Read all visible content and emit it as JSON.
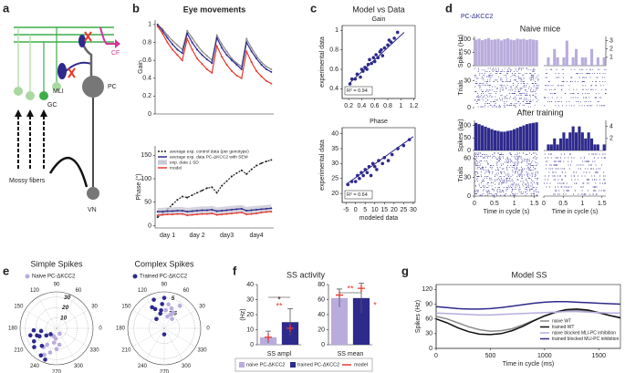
{
  "panel_labels": [
    "a",
    "b",
    "c",
    "d",
    "e",
    "f",
    "g"
  ],
  "diagram": {
    "labels": [
      "CF",
      "PC",
      "MLI",
      "GC",
      "Mossy fibers",
      "VN"
    ]
  },
  "chart_data": [
    {
      "type": "line",
      "title": "Eye movements",
      "ylabel": "Gain",
      "categories": [
        null,
        null,
        null,
        null,
        null,
        null,
        null,
        null,
        null,
        null,
        null,
        null,
        null,
        null,
        null,
        null,
        null,
        null,
        null,
        null,
        null,
        null,
        null,
        null
      ],
      "ylim": [
        0,
        1.05
      ],
      "yticks": [
        0,
        0.2,
        0.4,
        0.6,
        0.8,
        1
      ],
      "series": [
        {
          "color": "#8a8a8a",
          "values": [
            1,
            0.95,
            0.88,
            0.82,
            0.77,
            0.72,
            0.93,
            0.85,
            0.77,
            0.7,
            0.65,
            0.6,
            0.88,
            0.78,
            0.7,
            0.62,
            0.57,
            0.53,
            0.84,
            0.74,
            0.65,
            0.58,
            0.53,
            0.5
          ]
        },
        {
          "color": "#2e2a8c",
          "values": [
            1,
            0.93,
            0.85,
            0.78,
            0.72,
            0.68,
            0.9,
            0.8,
            0.72,
            0.66,
            0.61,
            0.57,
            0.85,
            0.74,
            0.66,
            0.6,
            0.55,
            0.5,
            0.8,
            0.7,
            0.62,
            0.55,
            0.5,
            0.47
          ]
        },
        {
          "color": "#e53a2f",
          "values": [
            0.98,
            0.9,
            0.8,
            0.72,
            0.66,
            0.6,
            0.84,
            0.72,
            0.62,
            0.56,
            0.5,
            0.46,
            0.76,
            0.64,
            0.55,
            0.48,
            0.43,
            0.4,
            0.7,
            0.58,
            0.48,
            0.42,
            0.37,
            0.34
          ]
        }
      ]
    },
    {
      "type": "line",
      "ylabel": "Phase (°)",
      "categories": [
        null,
        null,
        "day 1",
        null,
        null,
        null,
        null,
        null,
        "day 2",
        null,
        null,
        null,
        null,
        null,
        "day3",
        null,
        null,
        null,
        null,
        null,
        "day4",
        null,
        null,
        null
      ],
      "ylim": [
        -5,
        170
      ],
      "yticks": [
        0,
        50,
        100,
        150
      ],
      "series": [
        {
          "name": "average exp. control data (per genotype)",
          "color": "#222222",
          "dash": true,
          "values": [
            18,
            25,
            35,
            45,
            55,
            62,
            60,
            65,
            70,
            75,
            80,
            82,
            70,
            85,
            95,
            105,
            112,
            118,
            110,
            120,
            128,
            133,
            137,
            140
          ]
        },
        {
          "name": "average exp. data PC-ΔKCC2 with SEM",
          "color": "#2e2a8c",
          "band_name": "exp. data 1 SD",
          "band_color": "#c9c9d6",
          "values": [
            30,
            30,
            31,
            31,
            32,
            32,
            30,
            31,
            32,
            33,
            33,
            34,
            31,
            32,
            33,
            34,
            35,
            36,
            32,
            33,
            34,
            35,
            36,
            37
          ],
          "sd": [
            8,
            8,
            8,
            8,
            8,
            8,
            8,
            8,
            8,
            8,
            8,
            8,
            8,
            8,
            8,
            8,
            8,
            8,
            8,
            8,
            8,
            8,
            8,
            8
          ]
        },
        {
          "name": "model",
          "color": "#e53a2f",
          "values": [
            22,
            23,
            24,
            24,
            25,
            25,
            22,
            23,
            24,
            25,
            25,
            26,
            23,
            24,
            25,
            26,
            27,
            28,
            24,
            25,
            26,
            28,
            29,
            30
          ]
        }
      ]
    },
    {
      "type": "scatter",
      "title": "Model vs Data",
      "subtitle": "Gain",
      "ylabel": "experimental data",
      "annotation": "R² = 0.94",
      "color": "#2e2a8c",
      "xlim": [
        0.1,
        1.22
      ],
      "xticks": [
        0.2,
        0.4,
        0.6,
        0.8,
        1,
        1.2
      ],
      "ylim": [
        0.3,
        1.05
      ],
      "yticks": [
        0.4,
        0.6,
        0.8,
        1
      ],
      "x": [
        0.22,
        0.25,
        0.3,
        0.33,
        0.38,
        0.4,
        0.42,
        0.45,
        0.48,
        0.5,
        0.52,
        0.55,
        0.58,
        0.6,
        0.62,
        0.65,
        0.68,
        0.7,
        0.72,
        0.75,
        0.8,
        0.82,
        0.85,
        0.9,
        0.95
      ],
      "y": [
        0.45,
        0.5,
        0.5,
        0.55,
        0.52,
        0.6,
        0.58,
        0.62,
        0.6,
        0.65,
        0.7,
        0.66,
        0.72,
        0.68,
        0.75,
        0.72,
        0.78,
        0.8,
        0.74,
        0.82,
        0.85,
        0.9,
        0.88,
        0.92,
        0.98
      ],
      "fit": {
        "x": [
          0.2,
          1.05
        ],
        "y": [
          0.45,
          0.98
        ]
      }
    },
    {
      "type": "scatter",
      "subtitle": "Phase",
      "xlabel": "modeled data",
      "ylabel": "experimental data",
      "annotation": "R² = 0.64",
      "color": "#2e2a8c",
      "xlim": [
        -7,
        31
      ],
      "xticks": [
        -5,
        0,
        5,
        10,
        15,
        20,
        25,
        30
      ],
      "ylim": [
        17,
        42
      ],
      "yticks": [
        20,
        25,
        30,
        35,
        40
      ],
      "x": [
        -4,
        -2,
        0,
        1,
        2,
        3,
        4,
        5,
        6,
        7,
        8,
        9,
        10,
        11,
        12,
        14,
        15,
        17,
        19,
        22,
        25,
        28
      ],
      "y": [
        23,
        24,
        24,
        26,
        25,
        27,
        26,
        28,
        27,
        29,
        26,
        30,
        29,
        28,
        31,
        30,
        32,
        31,
        33,
        35,
        36,
        38
      ],
      "fit": {
        "x": [
          -5,
          30
        ],
        "y": [
          23,
          39
        ]
      }
    },
    {
      "type": "histogram",
      "title": "Naive mice",
      "subtitle": "PC-ΔKCC2",
      "ylabel": "Spikes (Hz)",
      "color": "#b9acdd",
      "bins": [
        0,
        0.08,
        0.16,
        0.24,
        0.32,
        0.4,
        0.48,
        0.56,
        0.64,
        0.72,
        0.8,
        0.88,
        0.96,
        1.04,
        1.12,
        1.2,
        1.28,
        1.36,
        1.44,
        1.52,
        1.6
      ],
      "values": [
        98,
        102,
        96,
        100,
        104,
        97,
        99,
        101,
        95,
        100,
        103,
        98,
        96,
        102,
        99,
        101,
        97,
        100,
        98,
        96
      ],
      "xlim": [
        0,
        1.6
      ],
      "ylim": [
        0,
        110
      ],
      "yticks": [
        0,
        50,
        100
      ]
    },
    {
      "type": "histogram",
      "color": "#b9acdd",
      "bins": [
        0,
        0.08,
        0.16,
        0.24,
        0.32,
        0.4,
        0.48,
        0.56,
        0.64,
        0.72,
        0.8,
        0.88,
        0.96,
        1.04,
        1.12,
        1.2,
        1.28,
        1.36,
        1.44,
        1.52,
        1.6
      ],
      "values": [
        0,
        1,
        0,
        2,
        1,
        0,
        1,
        3,
        0,
        1,
        2,
        0,
        1,
        1,
        0,
        2,
        0,
        1,
        0,
        1
      ],
      "xlim": [
        0,
        1.6
      ],
      "ylim": [
        0,
        3.5
      ],
      "yticks": [
        1,
        2,
        3
      ]
    },
    {
      "type": "raster",
      "ylabel": "Trials",
      "ylim": [
        0,
        45
      ],
      "yticks": [
        0,
        30
      ]
    },
    {
      "type": "histogram",
      "title": "After training",
      "ylabel": "Spikes (Hz)",
      "color": "#2e2a8c",
      "bins": [
        0,
        0.08,
        0.16,
        0.24,
        0.32,
        0.4,
        0.48,
        0.56,
        0.64,
        0.72,
        0.8,
        0.88,
        0.96,
        1.04,
        1.12,
        1.2,
        1.28,
        1.36,
        1.44,
        1.52,
        1.6
      ],
      "values": [
        110,
        105,
        100,
        95,
        90,
        85,
        80,
        78,
        75,
        75,
        78,
        80,
        85,
        90,
        95,
        100,
        105,
        108,
        110,
        112
      ],
      "xlim": [
        0,
        1.6
      ],
      "ylim": [
        0,
        120
      ],
      "yticks": [
        0,
        50,
        100
      ]
    },
    {
      "type": "histogram",
      "color": "#2e2a8c",
      "bins": [
        0,
        0.08,
        0.16,
        0.24,
        0.32,
        0.4,
        0.48,
        0.56,
        0.64,
        0.72,
        0.8,
        0.88,
        0.96,
        1.04,
        1.12,
        1.2,
        1.28,
        1.36,
        1.44,
        1.52,
        1.6
      ],
      "values": [
        0,
        1,
        1,
        2,
        1,
        2,
        3,
        2,
        3,
        4,
        3,
        4,
        3,
        2,
        3,
        2,
        1,
        1,
        0,
        1
      ],
      "xlim": [
        0,
        1.6
      ],
      "ylim": [
        0,
        5
      ],
      "yticks": [
        2,
        4
      ]
    },
    {
      "type": "raster",
      "ylabel": "Trials",
      "xlabel": "Time in cycle (s)",
      "xlim": [
        0,
        1.6
      ],
      "xticks": [
        0,
        0.5,
        1,
        1.5
      ],
      "ylim": [
        0,
        70
      ],
      "yticks": [
        0,
        30,
        60
      ]
    },
    {
      "type": "raster",
      "xlabel": "Time in cycle (s)",
      "xlim": [
        0,
        1.6
      ],
      "xticks": [
        0,
        0.5,
        1,
        1.5
      ]
    },
    {
      "type": "polar",
      "title": "Simple Spikes",
      "rlim": [
        0,
        35
      ],
      "rticks": [
        10,
        20,
        30
      ],
      "angles": [
        0,
        30,
        60,
        90,
        120,
        150,
        180,
        210,
        240,
        270,
        300,
        330
      ],
      "series": [
        {
          "name": "Naive PC-ΔKCC2",
          "color": "#b9acdd",
          "theta": [
            250,
            260,
            270,
            240,
            255,
            265,
            280,
            235,
            300,
            245
          ],
          "r": [
            8,
            14,
            20,
            18,
            24,
            10,
            16,
            22,
            6,
            28
          ]
        },
        {
          "color": "#2e2a8c",
          "theta": [
            200,
            210,
            190,
            220,
            230,
            215,
            240,
            205,
            195,
            225,
            185,
            250
          ],
          "r": [
            20,
            25,
            15,
            28,
            22,
            12,
            30,
            18,
            26,
            8,
            22,
            32
          ]
        }
      ]
    },
    {
      "type": "polar",
      "title": "Complex Spikes",
      "rlim": [
        0,
        6
      ],
      "rticks": [
        2.5,
        5
      ],
      "angles": [
        0,
        30,
        60,
        90,
        120,
        150,
        180,
        210,
        240,
        270,
        300,
        330
      ],
      "series": [
        {
          "color": "#b9acdd",
          "theta": [
            60,
            70,
            75,
            80,
            65,
            55,
            85,
            50
          ],
          "r": [
            3,
            3.5,
            2,
            4,
            2.5,
            4.5,
            3,
            2
          ]
        },
        {
          "name": "Trained PC-ΔKCC2",
          "color": "#2e2a8c",
          "theta": [
            95,
            100,
            110,
            105,
            115,
            90,
            120,
            130,
            270
          ],
          "r": [
            4,
            3,
            5,
            2.5,
            3.5,
            5,
            4,
            2,
            1
          ]
        }
      ]
    },
    {
      "type": "bar",
      "title": "SS activity",
      "xlabel": "SS ampl",
      "ylabel": "(Hz)",
      "ylim": [
        0,
        40
      ],
      "yticks": [
        0,
        10,
        20,
        30,
        40
      ],
      "series": [
        {
          "name": "naive PC-ΔKCC2",
          "color": "#b9acdd",
          "values": [
            5
          ],
          "errors": [
            4
          ]
        },
        {
          "name": "trained PC-ΔKCC2",
          "color": "#2e2a8c",
          "values": [
            15
          ],
          "errors": [
            9
          ]
        }
      ],
      "model": {
        "name": "model",
        "color": "#e53a2f",
        "values": [
          5,
          11
        ]
      },
      "annotations": [
        "*",
        "**"
      ]
    },
    {
      "type": "bar",
      "xlabel": "SS mean",
      "ylim": [
        0,
        80
      ],
      "yticks": [
        0,
        20,
        40,
        60,
        80
      ],
      "series": [
        {
          "color": "#b9acdd",
          "values": [
            62
          ],
          "errors": [
            12
          ]
        },
        {
          "color": "#2e2a8c",
          "values": [
            62
          ],
          "errors": [
            20
          ]
        }
      ],
      "model": {
        "color": "#e53a2f",
        "values": [
          66,
          75
        ]
      },
      "annotations": [
        "**",
        "*"
      ]
    },
    {
      "type": "line",
      "title": "Model SS",
      "xlabel": "Time in cycle (ms)",
      "ylabel": "Spikes (Hz)",
      "x": [
        0,
        100,
        200,
        300,
        400,
        500,
        600,
        700,
        800,
        900,
        1000,
        1100,
        1200,
        1300,
        1400,
        1500,
        1600,
        1700
      ],
      "xlim": [
        0,
        1700
      ],
      "xticks": [
        0,
        500,
        1000,
        1500
      ],
      "ylim": [
        0,
        130
      ],
      "yticks": [
        0,
        30,
        60,
        90,
        120
      ],
      "legend": "lower right",
      "series": [
        {
          "name": "naive WT",
          "color": "#8a8a8a",
          "values": [
            65,
            60,
            52,
            44,
            38,
            35,
            36,
            40,
            48,
            57,
            66,
            73,
            77,
            78,
            76,
            72,
            67,
            63
          ]
        },
        {
          "name": "trained WT",
          "color": "#111111",
          "values": [
            60,
            52,
            42,
            34,
            29,
            28,
            30,
            36,
            45,
            56,
            66,
            74,
            79,
            80,
            78,
            73,
            67,
            62
          ]
        },
        {
          "name": "naive blocked MLI-PC inhibition",
          "color": "#b9acdd",
          "values": [
            72,
            71,
            70,
            69,
            68,
            68,
            69,
            70,
            71,
            72,
            73,
            74,
            75,
            75,
            74,
            73,
            72,
            72
          ]
        },
        {
          "name": "trained blocked MLI-PC inhibition",
          "color": "#2e2a8c",
          "values": [
            85,
            83,
            81,
            80,
            80,
            81,
            83,
            86,
            89,
            92,
            94,
            95,
            95,
            94,
            93,
            92,
            91,
            90
          ]
        }
      ]
    }
  ]
}
